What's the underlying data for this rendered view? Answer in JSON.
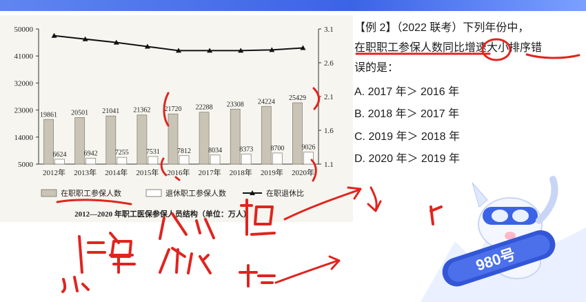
{
  "header": {
    "left_title": "",
    "right_title": ""
  },
  "chart_data": {
    "type": "bar",
    "title": "2012—2020 年职工医保参保人员结构（单位：万人）",
    "categories": [
      "2012年",
      "2013年",
      "2014年",
      "2015年",
      "2016年",
      "2017年",
      "2018年",
      "2019年",
      "2020年"
    ],
    "series": [
      {
        "name": "在职职工参保人数",
        "kind": "bar",
        "axis": "left",
        "color": "#c9c4b6",
        "values": [
          19861,
          20501,
          21041,
          21362,
          21720,
          22288,
          23308,
          24224,
          25429
        ],
        "labels": [
          "19861",
          "20501",
          "21041",
          "21362",
          "21720",
          "22288",
          "23308",
          "24224",
          "25429"
        ]
      },
      {
        "name": "退休职工参保人数",
        "kind": "bar",
        "axis": "left",
        "color": "#ffffff",
        "values": [
          6624,
          6942,
          7255,
          7531,
          7812,
          8034,
          8373,
          8700,
          9026
        ],
        "labels": [
          "6624",
          "6942",
          "7255",
          "7531",
          "7812",
          "8034",
          "8373",
          "8700",
          "9026"
        ]
      },
      {
        "name": "在职退休比",
        "kind": "line",
        "axis": "right",
        "color": "#111111",
        "values": [
          3.0,
          2.95,
          2.9,
          2.84,
          2.78,
          2.78,
          2.78,
          2.79,
          2.82
        ]
      }
    ],
    "y_left": {
      "min": 5000,
      "max": 50000,
      "ticks": [
        "5000",
        "14000",
        "23000",
        "32000",
        "41000",
        "50000"
      ]
    },
    "y_right": {
      "min": 1.1,
      "max": 3.1,
      "ticks": [
        "1.1",
        "1.6",
        "2.1",
        "2.6",
        "3.1"
      ]
    },
    "legend_position": "bottom",
    "grid": false
  },
  "question": {
    "lines": [
      "【例 2】（2022 联考）下列年份中，",
      "在职职工参保人数同比增速大小排序错",
      "误的是："
    ],
    "options": [
      {
        "label": "A. 2017 年＞ 2016 年"
      },
      {
        "label": "B. 2018 年＞ 2017 年"
      },
      {
        "label": "C. 2019 年＞ 2018 年"
      },
      {
        "label": "D. 2020 年＞ 2019 年"
      }
    ]
  },
  "mascot": {
    "badge": "980号",
    "accent": "#3b63e6"
  },
  "handwriting": {
    "ink_color": "#e0241f"
  }
}
